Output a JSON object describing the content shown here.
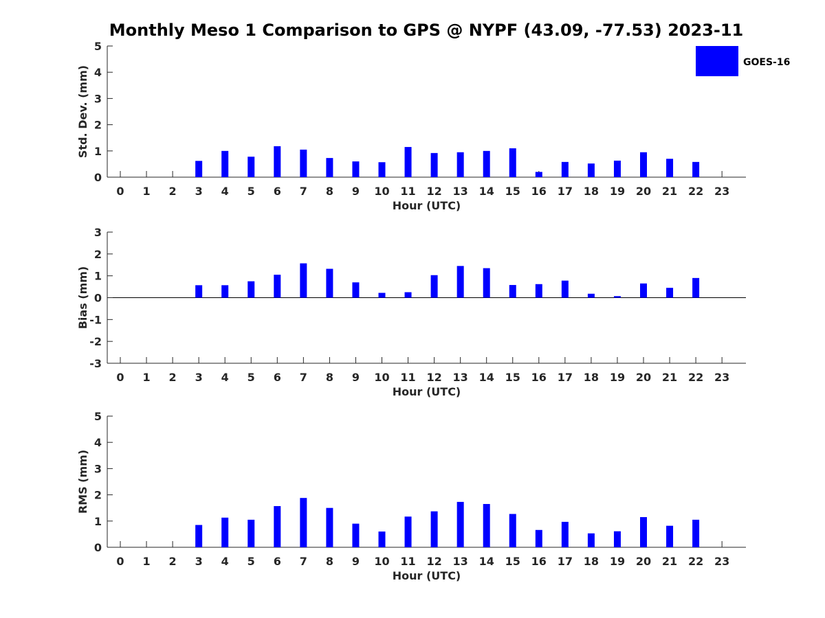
{
  "title": "Monthly Meso 1 Comparison to GPS @ NYPF (43.09, -77.53) 2023-11",
  "legend": {
    "label": "GOES-16",
    "color": "#0000ff"
  },
  "chart_data": [
    {
      "type": "bar",
      "name": "std",
      "xlabel": "Hour (UTC)",
      "ylabel": "Std. Dev. (mm)",
      "ylim": [
        0,
        5
      ],
      "yticks": [
        0,
        1,
        2,
        3,
        4,
        5
      ],
      "categories": [
        "0",
        "1",
        "2",
        "3",
        "4",
        "5",
        "6",
        "7",
        "8",
        "9",
        "10",
        "11",
        "12",
        "13",
        "14",
        "15",
        "16",
        "17",
        "18",
        "19",
        "20",
        "21",
        "22",
        "23"
      ],
      "series": [
        {
          "name": "GOES-16",
          "color": "#0000ff",
          "values": [
            null,
            null,
            null,
            0.62,
            1.0,
            0.78,
            1.18,
            1.05,
            0.73,
            0.6,
            0.57,
            1.15,
            0.92,
            0.95,
            1.0,
            1.1,
            0.2,
            0.58,
            0.52,
            0.63,
            0.95,
            0.7,
            0.58,
            null
          ]
        }
      ],
      "legend_position": "top-right"
    },
    {
      "type": "bar",
      "name": "bias",
      "xlabel": "Hour (UTC)",
      "ylabel": "Bias (mm)",
      "ylim": [
        -3,
        3
      ],
      "yticks": [
        -3,
        -2,
        -1,
        0,
        1,
        2,
        3
      ],
      "categories": [
        "0",
        "1",
        "2",
        "3",
        "4",
        "5",
        "6",
        "7",
        "8",
        "9",
        "10",
        "11",
        "12",
        "13",
        "14",
        "15",
        "16",
        "17",
        "18",
        "19",
        "20",
        "21",
        "22",
        "23"
      ],
      "series": [
        {
          "name": "GOES-16",
          "color": "#0000ff",
          "values": [
            null,
            null,
            null,
            0.57,
            0.57,
            0.75,
            1.05,
            1.57,
            1.32,
            0.7,
            0.22,
            0.25,
            1.03,
            1.45,
            1.35,
            0.58,
            0.62,
            0.78,
            0.18,
            0.07,
            0.65,
            0.45,
            0.9,
            null
          ]
        }
      ]
    },
    {
      "type": "bar",
      "name": "rms",
      "xlabel": "Hour (UTC)",
      "ylabel": "RMS (mm)",
      "ylim": [
        0,
        5
      ],
      "yticks": [
        0,
        1,
        2,
        3,
        4,
        5
      ],
      "categories": [
        "0",
        "1",
        "2",
        "3",
        "4",
        "5",
        "6",
        "7",
        "8",
        "9",
        "10",
        "11",
        "12",
        "13",
        "14",
        "15",
        "16",
        "17",
        "18",
        "19",
        "20",
        "21",
        "22",
        "23"
      ],
      "series": [
        {
          "name": "GOES-16",
          "color": "#0000ff",
          "values": [
            null,
            null,
            null,
            0.85,
            1.13,
            1.05,
            1.57,
            1.88,
            1.5,
            0.9,
            0.6,
            1.17,
            1.37,
            1.73,
            1.65,
            1.27,
            0.66,
            0.97,
            0.53,
            0.61,
            1.15,
            0.82,
            1.05,
            null
          ]
        }
      ]
    }
  ]
}
